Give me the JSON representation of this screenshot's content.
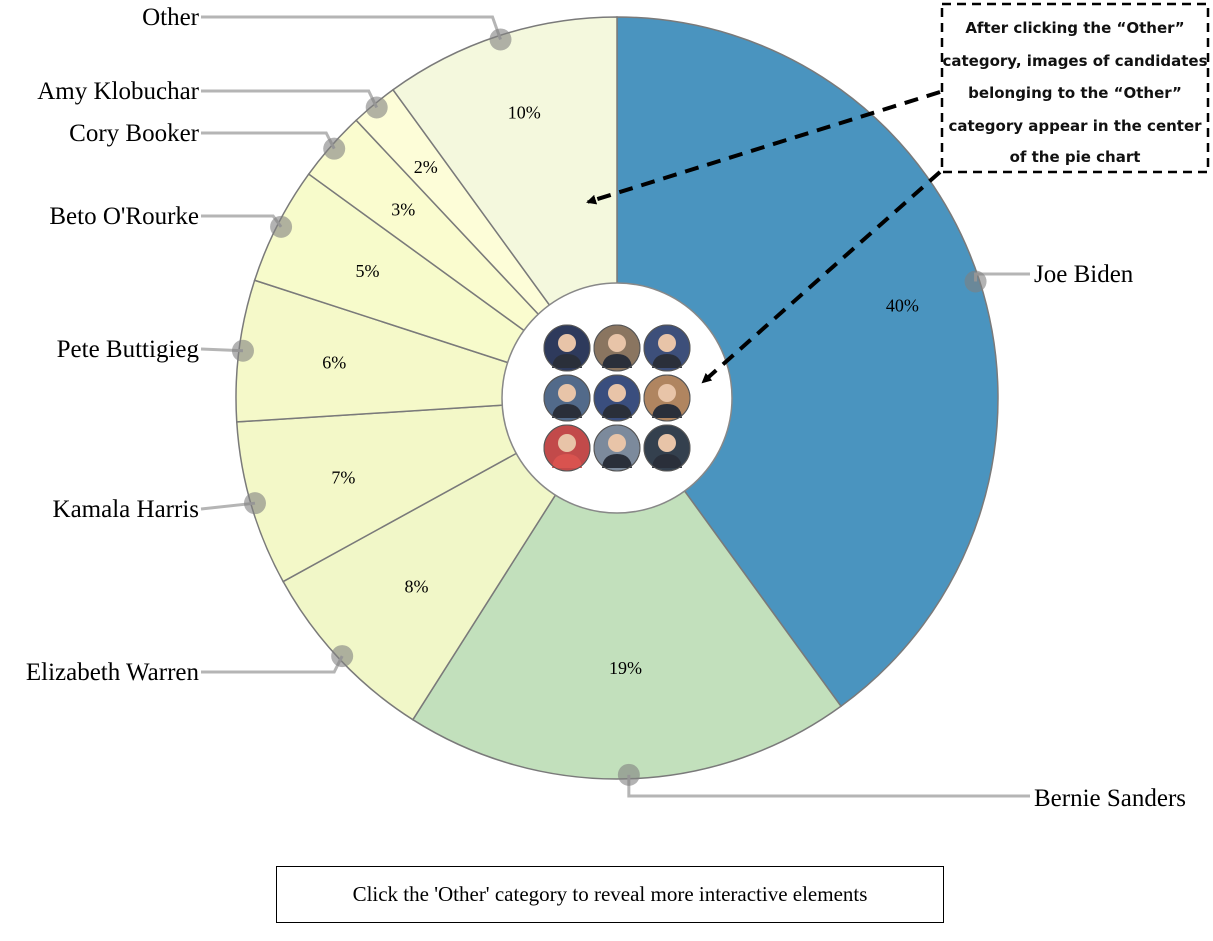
{
  "chart_data": {
    "type": "pie",
    "categories": [
      "Joe Biden",
      "Bernie Sanders",
      "Elizabeth Warren",
      "Kamala Harris",
      "Pete Buttigieg",
      "Beto O'Rourke",
      "Cory Booker",
      "Amy Klobuchar",
      "Other"
    ],
    "values": [
      40,
      19,
      8,
      7,
      6,
      5,
      3,
      2,
      10
    ],
    "value_labels": [
      "40%",
      "19%",
      "8%",
      "7%",
      "6%",
      "5%",
      "3%",
      "2%",
      "10%"
    ],
    "colors": [
      "#4a94bf",
      "#c2e0bc",
      "#f1f7c8",
      "#f3f8c8",
      "#f5f9c9",
      "#f7fbcb",
      "#fafccf",
      "#fdfdd8",
      "#f4f8dd"
    ],
    "center_images_count": 9,
    "center_avatar_colors": [
      "#2e3a5c",
      "#8a7560",
      "#3d4f7a",
      "#526a8a",
      "#3a4e7e",
      "#b08560",
      "#c24a4a",
      "#7c8a9c",
      "#34404e"
    ]
  },
  "annotation": {
    "lines": [
      "After clicking the “Other”",
      "category, images of candidates",
      "belonging to the “Other”",
      "category appear in the center",
      "of the pie chart"
    ]
  },
  "hint": {
    "text": "Click the 'Other' category to reveal more interactive elements"
  }
}
